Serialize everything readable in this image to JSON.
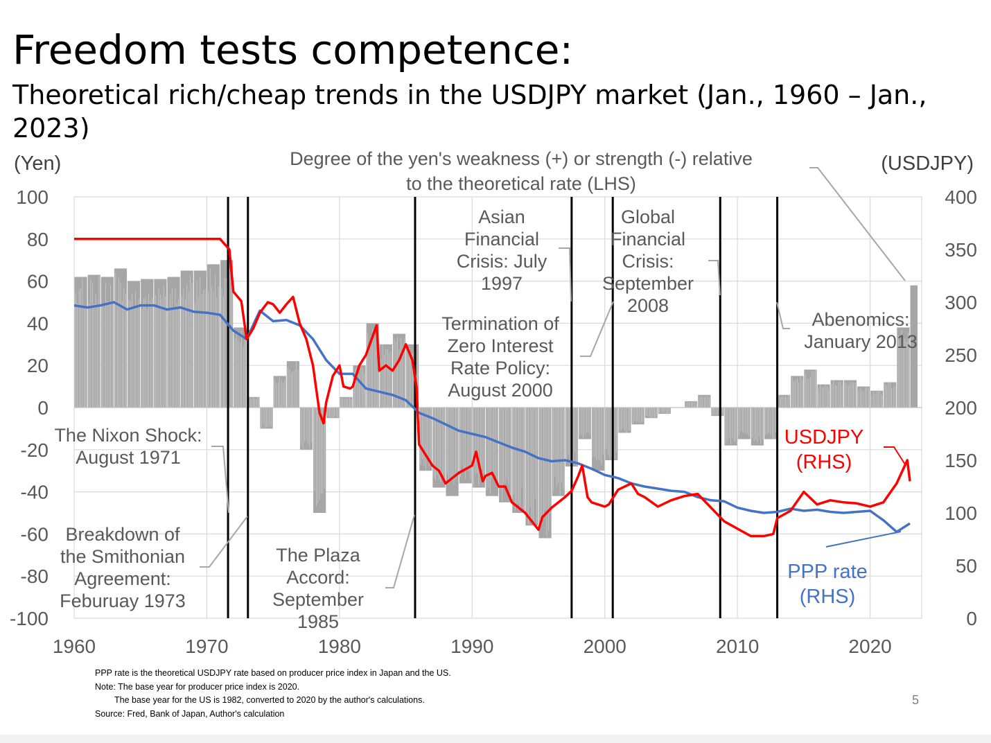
{
  "title": "Freedom tests competence:",
  "subtitle": "Theoretical rich/cheap trends in the USDJPY market (Jan., 1960 – Jan., 2023)",
  "page_number": "5",
  "notes": [
    "PPP rate is the theoretical USDJPY rate based on producer price index in Japan and the US.",
    "Note: The base year for producer price index is 2020.",
    "The base year for the US is 1982, converted to 2020 by the author's calculations.",
    "Source: Fred, Bank of Japan, Author's calculation"
  ],
  "colors": {
    "usdjpy": "#ff0000",
    "ppp": "#4472c4",
    "bars": "#a6a6a6",
    "events": "#000000",
    "grid": "#d9d9d9",
    "text": "#595959"
  },
  "chart_data": {
    "type": "bar+line",
    "title": "Degree of the yen's weakness (+) or strength (-) relative to the theoretical rate (LHS)",
    "left_axis": {
      "label": "(Yen)",
      "range": [
        -100,
        100
      ],
      "ticks": [
        100,
        80,
        60,
        40,
        20,
        0,
        -20,
        -40,
        -60,
        -80,
        -100
      ]
    },
    "right_axis": {
      "label": "(USDJPY)",
      "range": [
        0,
        400
      ],
      "ticks": [
        400,
        350,
        300,
        250,
        200,
        150,
        100,
        50,
        0
      ]
    },
    "x_axis": {
      "range": [
        1960,
        2023
      ],
      "ticks": [
        1960,
        1970,
        1980,
        1990,
        2000,
        2010,
        2020
      ]
    },
    "grid": true,
    "series": [
      {
        "name": "Degree of the yen's weakness (+) or strength (-) relative to the theoretical rate",
        "axis": "left",
        "type": "bar",
        "points": [
          [
            1960,
            62
          ],
          [
            1961,
            63
          ],
          [
            1962,
            62
          ],
          [
            1963,
            66
          ],
          [
            1964,
            60
          ],
          [
            1965,
            61
          ],
          [
            1966,
            61
          ],
          [
            1967,
            62
          ],
          [
            1968,
            65
          ],
          [
            1969,
            65
          ],
          [
            1970,
            68
          ],
          [
            1971,
            70
          ],
          [
            1972,
            38
          ],
          [
            1973,
            5
          ],
          [
            1974,
            -10
          ],
          [
            1975,
            15
          ],
          [
            1976,
            22
          ],
          [
            1977,
            -20
          ],
          [
            1978,
            -50
          ],
          [
            1979,
            -5
          ],
          [
            1980,
            5
          ],
          [
            1981,
            20
          ],
          [
            1982,
            40
          ],
          [
            1983,
            30
          ],
          [
            1984,
            35
          ],
          [
            1985,
            30
          ],
          [
            1986,
            -30
          ],
          [
            1987,
            -38
          ],
          [
            1988,
            -42
          ],
          [
            1989,
            -36
          ],
          [
            1990,
            -38
          ],
          [
            1991,
            -42
          ],
          [
            1992,
            -45
          ],
          [
            1993,
            -50
          ],
          [
            1994,
            -56
          ],
          [
            1995,
            -62
          ],
          [
            1996,
            -42
          ],
          [
            1997,
            -28
          ],
          [
            1998,
            -15
          ],
          [
            1999,
            -30
          ],
          [
            2000,
            -25
          ],
          [
            2001,
            -12
          ],
          [
            2002,
            -8
          ],
          [
            2003,
            -5
          ],
          [
            2004,
            -3
          ],
          [
            2005,
            0
          ],
          [
            2006,
            3
          ],
          [
            2007,
            6
          ],
          [
            2008,
            -4
          ],
          [
            2009,
            -18
          ],
          [
            2010,
            -15
          ],
          [
            2011,
            -18
          ],
          [
            2012,
            -15
          ],
          [
            2013,
            6
          ],
          [
            2014,
            15
          ],
          [
            2015,
            18
          ],
          [
            2016,
            11
          ],
          [
            2017,
            13
          ],
          [
            2018,
            13
          ],
          [
            2019,
            10
          ],
          [
            2020,
            8
          ],
          [
            2021,
            12
          ],
          [
            2022,
            38
          ],
          [
            2023,
            58
          ]
        ]
      },
      {
        "name": "USDJPY (RHS)",
        "axis": "right",
        "type": "line",
        "points": [
          [
            1960,
            360
          ],
          [
            1971,
            360
          ],
          [
            1971.7,
            350
          ],
          [
            1972,
            310
          ],
          [
            1972.6,
            301
          ],
          [
            1973,
            265
          ],
          [
            1973.5,
            275
          ],
          [
            1974,
            290
          ],
          [
            1974.6,
            300
          ],
          [
            1975,
            298
          ],
          [
            1975.5,
            290
          ],
          [
            1976,
            298
          ],
          [
            1976.5,
            305
          ],
          [
            1977,
            280
          ],
          [
            1977.5,
            265
          ],
          [
            1978,
            240
          ],
          [
            1978.5,
            195
          ],
          [
            1978.8,
            185
          ],
          [
            1979,
            205
          ],
          [
            1979.5,
            230
          ],
          [
            1980,
            240
          ],
          [
            1980.3,
            220
          ],
          [
            1980.8,
            218
          ],
          [
            1981,
            220
          ],
          [
            1981.5,
            240
          ],
          [
            1982,
            250
          ],
          [
            1982.8,
            278
          ],
          [
            1983,
            235
          ],
          [
            1983.5,
            240
          ],
          [
            1984,
            235
          ],
          [
            1984.5,
            245
          ],
          [
            1985,
            260
          ],
          [
            1985.5,
            245
          ],
          [
            1985.8,
            220
          ],
          [
            1986,
            165
          ],
          [
            1986.5,
            155
          ],
          [
            1987,
            145
          ],
          [
            1987.5,
            140
          ],
          [
            1988,
            128
          ],
          [
            1989,
            138
          ],
          [
            1990,
            145
          ],
          [
            1990.3,
            158
          ],
          [
            1990.8,
            130
          ],
          [
            1991,
            135
          ],
          [
            1991.5,
            138
          ],
          [
            1992,
            125
          ],
          [
            1992.5,
            125
          ],
          [
            1993,
            110
          ],
          [
            1994,
            100
          ],
          [
            1995,
            84
          ],
          [
            1995.3,
            96
          ],
          [
            1996,
            105
          ],
          [
            1997,
            115
          ],
          [
            1997.5,
            121
          ],
          [
            1998,
            135
          ],
          [
            1998.3,
            145
          ],
          [
            1998.7,
            115
          ],
          [
            1999,
            110
          ],
          [
            2000,
            106
          ],
          [
            2000.3,
            108
          ],
          [
            2001,
            122
          ],
          [
            2002,
            128
          ],
          [
            2002.5,
            118
          ],
          [
            2003,
            115
          ],
          [
            2004,
            106
          ],
          [
            2005,
            112
          ],
          [
            2006,
            116
          ],
          [
            2007,
            118
          ],
          [
            2008,
            105
          ],
          [
            2009,
            92
          ],
          [
            2010,
            85
          ],
          [
            2011,
            78
          ],
          [
            2012,
            78
          ],
          [
            2012.7,
            80
          ],
          [
            2013,
            95
          ],
          [
            2014,
            102
          ],
          [
            2015,
            120
          ],
          [
            2016,
            108
          ],
          [
            2017,
            112
          ],
          [
            2018,
            110
          ],
          [
            2019,
            109
          ],
          [
            2020,
            106
          ],
          [
            2021,
            110
          ],
          [
            2022,
            128
          ],
          [
            2022.8,
            150
          ],
          [
            2023,
            130
          ]
        ]
      },
      {
        "name": "PPP rate (RHS)",
        "axis": "right",
        "type": "line",
        "points": [
          [
            1960,
            297
          ],
          [
            1961,
            295
          ],
          [
            1962,
            297
          ],
          [
            1963,
            300
          ],
          [
            1964,
            293
          ],
          [
            1965,
            297
          ],
          [
            1966,
            297
          ],
          [
            1967,
            293
          ],
          [
            1968,
            295
          ],
          [
            1969,
            291
          ],
          [
            1970,
            290
          ],
          [
            1971,
            288
          ],
          [
            1972,
            273
          ],
          [
            1973,
            265
          ],
          [
            1974,
            292
          ],
          [
            1975,
            282
          ],
          [
            1976,
            283
          ],
          [
            1977,
            278
          ],
          [
            1978,
            265
          ],
          [
            1979,
            245
          ],
          [
            1980,
            232
          ],
          [
            1981,
            232
          ],
          [
            1982,
            218
          ],
          [
            1983,
            215
          ],
          [
            1984,
            212
          ],
          [
            1985,
            207
          ],
          [
            1986,
            195
          ],
          [
            1987,
            190
          ],
          [
            1988,
            184
          ],
          [
            1989,
            178
          ],
          [
            1990,
            175
          ],
          [
            1991,
            172
          ],
          [
            1992,
            167
          ],
          [
            1993,
            162
          ],
          [
            1994,
            158
          ],
          [
            1995,
            152
          ],
          [
            1996,
            149
          ],
          [
            1997,
            150
          ],
          [
            1998,
            147
          ],
          [
            1999,
            142
          ],
          [
            2000,
            136
          ],
          [
            2001,
            133
          ],
          [
            2002,
            128
          ],
          [
            2003,
            125
          ],
          [
            2004,
            123
          ],
          [
            2005,
            121
          ],
          [
            2006,
            120
          ],
          [
            2007,
            115
          ],
          [
            2008,
            112
          ],
          [
            2009,
            111
          ],
          [
            2010,
            105
          ],
          [
            2011,
            102
          ],
          [
            2012,
            100
          ],
          [
            2013,
            101
          ],
          [
            2014,
            104
          ],
          [
            2015,
            102
          ],
          [
            2016,
            103
          ],
          [
            2017,
            101
          ],
          [
            2018,
            100
          ],
          [
            2019,
            101
          ],
          [
            2020,
            102
          ],
          [
            2021,
            93
          ],
          [
            2022,
            82
          ],
          [
            2023,
            90
          ]
        ]
      }
    ],
    "events": [
      {
        "year": 1971.6,
        "label": "The Nixon Shock:\nAugust 1971"
      },
      {
        "year": 1973.1,
        "label": "Breakdown of\nthe Smithonian\nAgreement:\nFeburuay 1973"
      },
      {
        "year": 1985.7,
        "label": "The Plaza\nAccord:\nSeptember\n1985"
      },
      {
        "year": 1997.5,
        "label": "Asian\nFinancial\nCrisis: July\n1997"
      },
      {
        "year": 2000.6,
        "label": "Termination of\nZero Interest\nRate Policy:\nAugust 2000"
      },
      {
        "year": 2008.7,
        "label": "Global\nFinancial\nCrisis:\nSeptember\n2008"
      },
      {
        "year": 2013.0,
        "label": "Abenomics:\nJanuary 2013"
      }
    ],
    "annotations": [
      {
        "text": "USDJPY\n(RHS)",
        "target": "USDJPY (RHS)"
      },
      {
        "text": "PPP rate\n(RHS)",
        "target": "PPP rate (RHS)"
      }
    ]
  }
}
